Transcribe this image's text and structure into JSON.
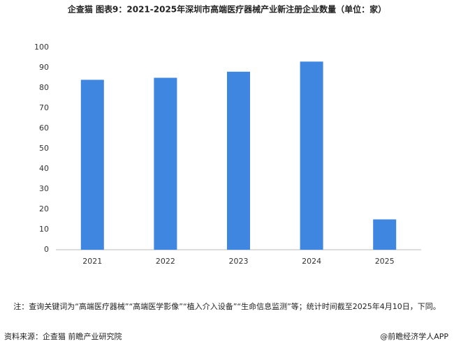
{
  "chart_data": {
    "type": "bar",
    "title": "企查猫 图表9：2021-2025年深圳市高端医疗器械产业新注册企业数量（单位：家）",
    "categories": [
      "2021",
      "2022",
      "2023",
      "2024",
      "2025"
    ],
    "values": [
      84,
      85,
      88,
      93,
      15
    ],
    "color": "#3f86e0",
    "ylim": [
      0,
      100
    ],
    "yticks": [
      0,
      10,
      20,
      30,
      40,
      50,
      60,
      70,
      80,
      90,
      100
    ],
    "grid": false,
    "note": "注：查询关键词为“高端医疗器械”“高端医学影像”“植入介入设备”“生命信息监测”等；统计时间截至2025年4月10日，下同。",
    "source": "资料来源：企查猫 前瞻产业研究院",
    "credit": "@前瞻经济学人APP"
  }
}
